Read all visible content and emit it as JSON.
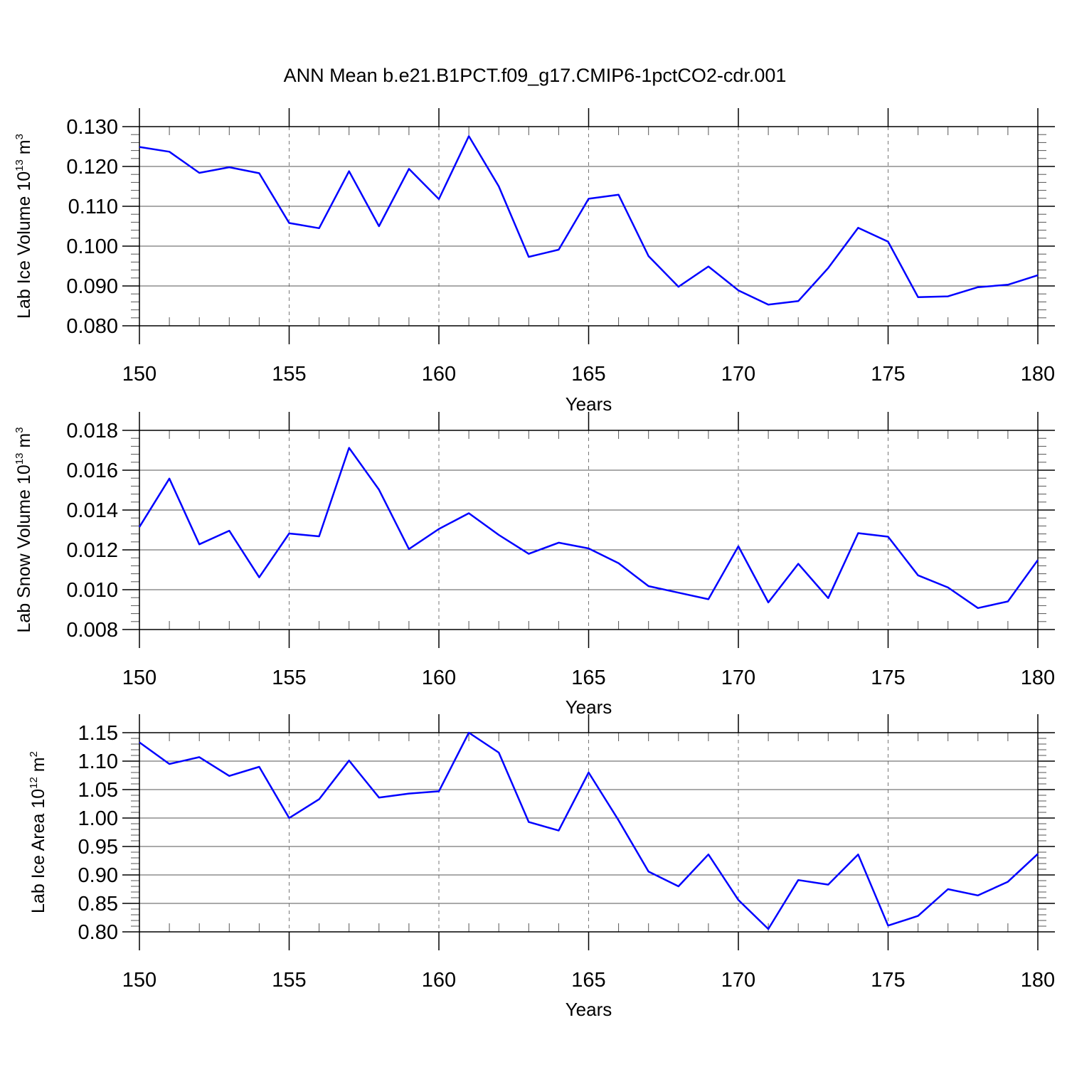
{
  "title": "ANN Mean b.e21.B1PCT.f09_g17.CMIP6-1pctCO2-cdr.001",
  "colors": {
    "series": "#0000ff",
    "axis": "#000000",
    "grid": "#777777"
  },
  "chart_data": [
    {
      "type": "line",
      "ylabel": {
        "text": "Lab Ice Volume 10",
        "exponent": "13",
        "unit": "m",
        "unit_exponent": "3"
      },
      "xlabel": "Years",
      "xlim": [
        150,
        180
      ],
      "ylim": [
        0.08,
        0.13
      ],
      "x_ticks": [
        150,
        155,
        160,
        165,
        170,
        175,
        180
      ],
      "x_tick_labels": [
        "150",
        "155",
        "160",
        "165",
        "170",
        "175",
        "180"
      ],
      "y_ticks": [
        0.08,
        0.09,
        0.1,
        0.11,
        0.12,
        0.13
      ],
      "y_tick_labels": [
        "0.080",
        "0.090",
        "0.100",
        "0.110",
        "0.120",
        "0.130"
      ],
      "y_minor_step": 0.002,
      "grid": "vertical-dashed",
      "x": [
        150,
        151,
        152,
        153,
        154,
        155,
        156,
        157,
        158,
        159,
        160,
        161,
        162,
        163,
        164,
        165,
        166,
        167,
        168,
        169,
        170,
        171,
        172,
        173,
        174,
        175,
        176,
        177,
        178,
        179,
        180
      ],
      "values": [
        0.1249,
        0.1237,
        0.1184,
        0.1198,
        0.1183,
        0.1058,
        0.1045,
        0.1188,
        0.105,
        0.1194,
        0.1118,
        0.1276,
        0.115,
        0.0973,
        0.0991,
        0.1119,
        0.1129,
        0.0975,
        0.0898,
        0.0949,
        0.0889,
        0.0853,
        0.0862,
        0.0945,
        0.1046,
        0.1011,
        0.0872,
        0.0874,
        0.0897,
        0.0903,
        0.0927
      ]
    },
    {
      "type": "line",
      "ylabel": {
        "text": "Lab Snow Volume 10",
        "exponent": "13",
        "unit": "m",
        "unit_exponent": "3"
      },
      "xlabel": "Years",
      "xlim": [
        150,
        180
      ],
      "ylim": [
        0.008,
        0.018
      ],
      "x_ticks": [
        150,
        155,
        160,
        165,
        170,
        175,
        180
      ],
      "x_tick_labels": [
        "150",
        "155",
        "160",
        "165",
        "170",
        "175",
        "180"
      ],
      "y_ticks": [
        0.008,
        0.01,
        0.012,
        0.014,
        0.016,
        0.018
      ],
      "y_tick_labels": [
        "0.008",
        "0.010",
        "0.012",
        "0.014",
        "0.016",
        "0.018"
      ],
      "y_minor_step": 0.0004,
      "grid": "vertical-dashed",
      "x": [
        150,
        151,
        152,
        153,
        154,
        155,
        156,
        157,
        158,
        159,
        160,
        161,
        162,
        163,
        164,
        165,
        166,
        167,
        168,
        169,
        170,
        171,
        172,
        173,
        174,
        175,
        176,
        177,
        178,
        179,
        180
      ],
      "values": [
        0.01315,
        0.01558,
        0.01228,
        0.01296,
        0.01062,
        0.01282,
        0.01268,
        0.01712,
        0.01502,
        0.01204,
        0.01305,
        0.01384,
        0.01275,
        0.0118,
        0.01236,
        0.01207,
        0.01133,
        0.01018,
        0.00985,
        0.00952,
        0.01218,
        0.00936,
        0.0113,
        0.00958,
        0.01284,
        0.01266,
        0.01072,
        0.01011,
        0.00908,
        0.00941,
        0.01149
      ]
    },
    {
      "type": "line",
      "ylabel": {
        "text": "Lab Ice Area 10",
        "exponent": "12",
        "unit": "m",
        "unit_exponent": "2"
      },
      "xlabel": "Years",
      "xlim": [
        150,
        180
      ],
      "ylim": [
        0.8,
        1.15
      ],
      "x_ticks": [
        150,
        155,
        160,
        165,
        170,
        175,
        180
      ],
      "x_tick_labels": [
        "150",
        "155",
        "160",
        "165",
        "170",
        "175",
        "180"
      ],
      "y_ticks": [
        0.8,
        0.85,
        0.9,
        0.95,
        1.0,
        1.05,
        1.1,
        1.15
      ],
      "y_tick_labels": [
        "0.80",
        "0.85",
        "0.90",
        "0.95",
        "1.00",
        "1.05",
        "1.10",
        "1.15"
      ],
      "y_minor_step": 0.01,
      "grid": "vertical-dashed",
      "x": [
        150,
        151,
        152,
        153,
        154,
        155,
        156,
        157,
        158,
        159,
        160,
        161,
        162,
        163,
        164,
        165,
        166,
        167,
        168,
        169,
        170,
        171,
        172,
        173,
        174,
        175,
        176,
        177,
        178,
        179,
        180
      ],
      "values": [
        1.133,
        1.095,
        1.107,
        1.074,
        1.09,
        1.0,
        1.033,
        1.101,
        1.036,
        1.043,
        1.047,
        1.15,
        1.115,
        0.993,
        0.978,
        1.08,
        0.996,
        0.906,
        0.88,
        0.936,
        0.856,
        0.805,
        0.891,
        0.883,
        0.936,
        0.811,
        0.828,
        0.875,
        0.864,
        0.888,
        0.937
      ]
    }
  ]
}
